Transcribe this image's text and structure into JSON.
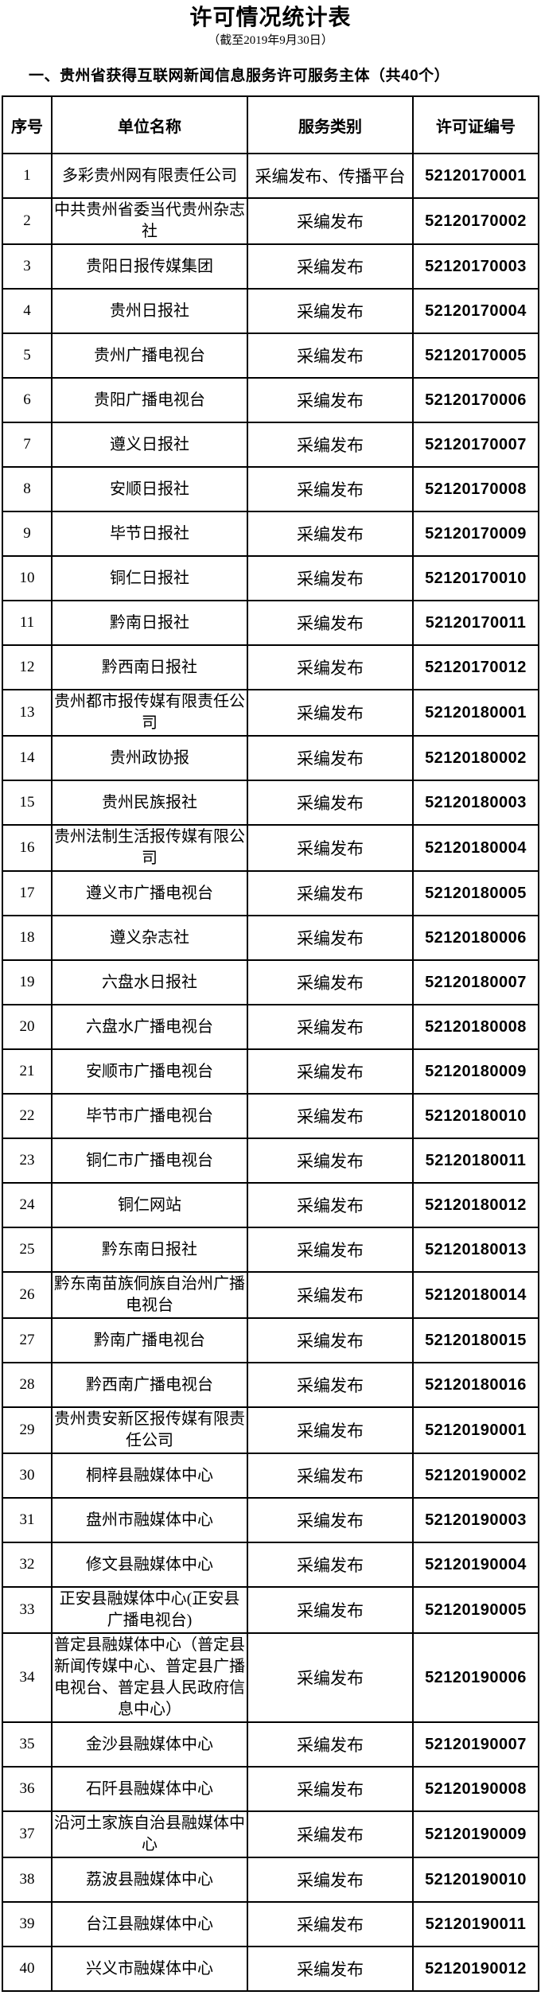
{
  "page": {
    "title": "许可情况统计表",
    "subtitle": "（截至2019年9月30日）",
    "section_heading": "一、贵州省获得互联网新闻信息服务许可服务主体（共40个）"
  },
  "colors": {
    "text": "#000000",
    "border": "#000000",
    "background": "#ffffff"
  },
  "table": {
    "columns": [
      "序号",
      "单位名称",
      "服务类别",
      "许可证编号"
    ],
    "rows": [
      {
        "no": "1",
        "unit": "多彩贵州网有限责任公司",
        "category": "采编发布、传播平台",
        "license": "52120170001"
      },
      {
        "no": "2",
        "unit": "中共贵州省委当代贵州杂志社",
        "category": "采编发布",
        "license": "52120170002"
      },
      {
        "no": "3",
        "unit": "贵阳日报传媒集团",
        "category": "采编发布",
        "license": "52120170003"
      },
      {
        "no": "4",
        "unit": "贵州日报社",
        "category": "采编发布",
        "license": "52120170004"
      },
      {
        "no": "5",
        "unit": "贵州广播电视台",
        "category": "采编发布",
        "license": "52120170005"
      },
      {
        "no": "6",
        "unit": "贵阳广播电视台",
        "category": "采编发布",
        "license": "52120170006"
      },
      {
        "no": "7",
        "unit": "遵义日报社",
        "category": "采编发布",
        "license": "52120170007"
      },
      {
        "no": "8",
        "unit": "安顺日报社",
        "category": "采编发布",
        "license": "52120170008"
      },
      {
        "no": "9",
        "unit": "毕节日报社",
        "category": "采编发布",
        "license": "52120170009"
      },
      {
        "no": "10",
        "unit": "铜仁日报社",
        "category": "采编发布",
        "license": "52120170010"
      },
      {
        "no": "11",
        "unit": "黔南日报社",
        "category": "采编发布",
        "license": "52120170011"
      },
      {
        "no": "12",
        "unit": "黔西南日报社",
        "category": "采编发布",
        "license": "52120170012"
      },
      {
        "no": "13",
        "unit": "贵州都市报传媒有限责任公司",
        "category": "采编发布",
        "license": "52120180001"
      },
      {
        "no": "14",
        "unit": "贵州政协报",
        "category": "采编发布",
        "license": "52120180002"
      },
      {
        "no": "15",
        "unit": "贵州民族报社",
        "category": "采编发布",
        "license": "52120180003"
      },
      {
        "no": "16",
        "unit": "贵州法制生活报传媒有限公司",
        "category": "采编发布",
        "license": "52120180004"
      },
      {
        "no": "17",
        "unit": "遵义市广播电视台",
        "category": "采编发布",
        "license": "52120180005"
      },
      {
        "no": "18",
        "unit": "遵义杂志社",
        "category": "采编发布",
        "license": "52120180006"
      },
      {
        "no": "19",
        "unit": "六盘水日报社",
        "category": "采编发布",
        "license": "52120180007"
      },
      {
        "no": "20",
        "unit": "六盘水广播电视台",
        "category": "采编发布",
        "license": "52120180008"
      },
      {
        "no": "21",
        "unit": "安顺市广播电视台",
        "category": "采编发布",
        "license": "52120180009"
      },
      {
        "no": "22",
        "unit": "毕节市广播电视台",
        "category": "采编发布",
        "license": "52120180010"
      },
      {
        "no": "23",
        "unit": "铜仁市广播电视台",
        "category": "采编发布",
        "license": "52120180011"
      },
      {
        "no": "24",
        "unit": "铜仁网站",
        "category": "采编发布",
        "license": "52120180012"
      },
      {
        "no": "25",
        "unit": "黔东南日报社",
        "category": "采编发布",
        "license": "52120180013"
      },
      {
        "no": "26",
        "unit": "黔东南苗族侗族自治州广播电视台",
        "category": "采编发布",
        "license": "52120180014"
      },
      {
        "no": "27",
        "unit": "黔南广播电视台",
        "category": "采编发布",
        "license": "52120180015"
      },
      {
        "no": "28",
        "unit": "黔西南广播电视台",
        "category": "采编发布",
        "license": "52120180016"
      },
      {
        "no": "29",
        "unit": "贵州贵安新区报传媒有限责任公司",
        "category": "采编发布",
        "license": "52120190001"
      },
      {
        "no": "30",
        "unit": "桐梓县融媒体中心",
        "category": "采编发布",
        "license": "52120190002"
      },
      {
        "no": "31",
        "unit": "盘州市融媒体中心",
        "category": "采编发布",
        "license": "52120190003"
      },
      {
        "no": "32",
        "unit": "修文县融媒体中心",
        "category": "采编发布",
        "license": "52120190004"
      },
      {
        "no": "33",
        "unit": "正安县融媒体中心(正安县广播电视台)",
        "category": "采编发布",
        "license": "52120190005"
      },
      {
        "no": "34",
        "unit": "普定县融媒体中心（普定县新闻传媒中心、普定县广播电视台、普定县人民政府信息中心）",
        "category": "采编发布",
        "license": "52120190006"
      },
      {
        "no": "35",
        "unit": "金沙县融媒体中心",
        "category": "采编发布",
        "license": "52120190007"
      },
      {
        "no": "36",
        "unit": "石阡县融媒体中心",
        "category": "采编发布",
        "license": "52120190008"
      },
      {
        "no": "37",
        "unit": "沿河土家族自治县融媒体中心",
        "category": "采编发布",
        "license": "52120190009"
      },
      {
        "no": "38",
        "unit": "荔波县融媒体中心",
        "category": "采编发布",
        "license": "52120190010"
      },
      {
        "no": "39",
        "unit": "台江县融媒体中心",
        "category": "采编发布",
        "license": "52120190011"
      },
      {
        "no": "40",
        "unit": "兴义市融媒体中心",
        "category": "采编发布",
        "license": "52120190012"
      }
    ]
  }
}
